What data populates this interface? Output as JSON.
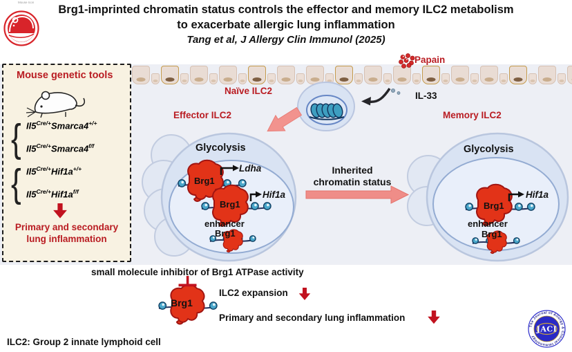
{
  "header": {
    "title_line1": "Brg1-imprinted chromatin status controls the effector and memory ILC2 metabolism",
    "title_line2": "to exacerbate allergic lung inflammation",
    "citation": "Tang et al, J Allergy Clin Immunol (2025)",
    "logo_caption": "Mouse Icon"
  },
  "colors": {
    "red_text": "#b91c22",
    "brg1_red": "#e23318",
    "pink_arrow": "#f0908d",
    "cell_fill": "#d9e3f3",
    "nucleus_fill": "#e9effa",
    "bead_teal": "#4aa7cb",
    "box_bg": "#f8f2e2",
    "band_bg": "#edeff5",
    "journal_blue": "#2a2ac6",
    "logo_red": "#d8242a",
    "block_red": "#c1121f"
  },
  "genetic_tools": {
    "title": "Mouse genetic tools",
    "genotypes": [
      {
        "gene": "Il5",
        "gene_sup": "Cre/+",
        "allele": "Smarca4",
        "allele_sup": "+/+"
      },
      {
        "gene": "Il5",
        "gene_sup": "Cre/+",
        "allele": "Smarca4",
        "allele_sup": "f/f"
      },
      {
        "gene": "Il5",
        "gene_sup": "Cre/+",
        "allele": "Hif1a",
        "allele_sup": "+/+"
      },
      {
        "gene": "Il5",
        "gene_sup": "Cre/+",
        "allele": "Hif1a",
        "allele_sup": "f/f"
      }
    ],
    "outcome_line1": "Primary and secondary",
    "outcome_line2": "lung inflammation"
  },
  "pathway": {
    "papain": "Papain",
    "il33": "IL-33",
    "naive_label": "Naïve ILC2",
    "effector_label": "Effector ILC2",
    "memory_label": "Memory ILC2",
    "glycolysis": "Glycolysis",
    "ldha": "Ldha",
    "hif1a": "Hif1a",
    "enhancer": "enhancer",
    "brg1": "Brg1",
    "inherited_line1": "Inherited",
    "inherited_line2": "chromatin status"
  },
  "bottom": {
    "inhibitor": "small molecule inhibitor of Brg1 ATPase activity",
    "expansion": "ILC2 expansion",
    "inflammation": "Primary and secondary lung inflammation",
    "footnote": "ILC2: Group 2 innate lymphoid cell"
  },
  "journal_logo": {
    "ring_text": "The Journal of Allergy & Clinical Immunology",
    "acronym": "JACI"
  }
}
